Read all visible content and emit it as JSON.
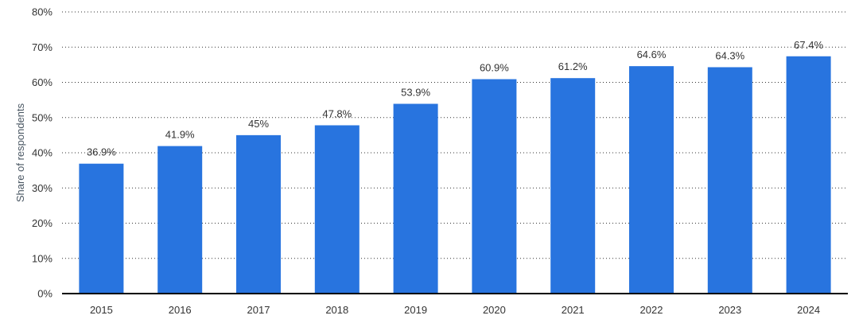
{
  "chart_data": {
    "type": "bar",
    "title": "",
    "xlabel": "",
    "ylabel": "Share of respondents",
    "categories": [
      "2015",
      "2016",
      "2017",
      "2018",
      "2019",
      "2020",
      "2021",
      "2022",
      "2023",
      "2024"
    ],
    "series": [
      {
        "name": "Share of respondents",
        "values": [
          36.9,
          41.9,
          45,
          47.8,
          53.9,
          60.9,
          61.2,
          64.6,
          64.3,
          67.4
        ],
        "labels": [
          "36.9%",
          "41.9%",
          "45%",
          "47.8%",
          "53.9%",
          "60.9%",
          "61.2%",
          "64.6%",
          "64.3%",
          "67.4%"
        ]
      }
    ],
    "ylim": [
      0,
      80
    ],
    "yticks": [
      0,
      10,
      20,
      30,
      40,
      50,
      60,
      70,
      80
    ],
    "ytick_labels": [
      "0%",
      "10%",
      "20%",
      "30%",
      "40%",
      "50%",
      "60%",
      "70%",
      "80%"
    ],
    "grid": true,
    "legend": "none",
    "bar_color": "#2874df"
  }
}
